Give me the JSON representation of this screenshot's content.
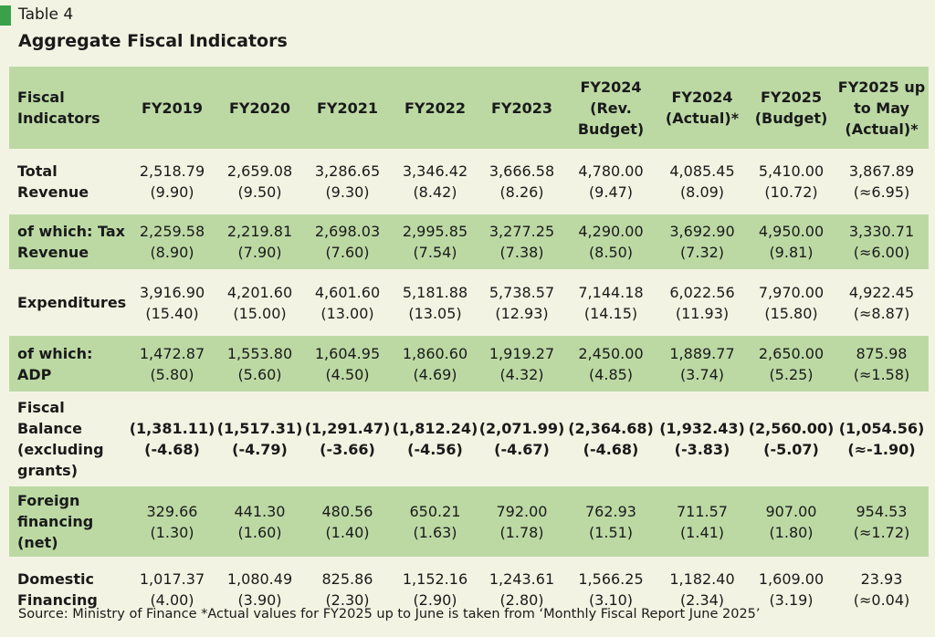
{
  "table_label": "Table 4",
  "title": "Aggregate Fiscal Indicators",
  "header": [
    "Fiscal Indicators",
    "FY2019",
    "FY2020",
    "FY2021",
    "FY2022",
    "FY2023",
    "FY2024 (Rev. Budget)",
    "FY2024 (Actual)*",
    "FY2025 (Budget)",
    "FY2025 up to May (Actual)*"
  ],
  "rows": [
    {
      "label": "Total Revenue",
      "values": [
        [
          "2,518.79",
          "(9.90)"
        ],
        [
          "2,659.08",
          "(9.50)"
        ],
        [
          "3,286.65",
          "(9.30)"
        ],
        [
          "3,346.42",
          "(8.42)"
        ],
        [
          "3,666.58",
          "(8.26)"
        ],
        [
          "4,780.00",
          "(9.47)"
        ],
        [
          "4,085.45",
          "(8.09)"
        ],
        [
          "5,410.00",
          "(10.72)"
        ],
        [
          "3,867.89",
          "(≈6.95)"
        ]
      ]
    },
    {
      "label": "of which: Tax Revenue",
      "values": [
        [
          "2,259.58",
          "(8.90)"
        ],
        [
          "2,219.81",
          "(7.90)"
        ],
        [
          "2,698.03",
          "(7.60)"
        ],
        [
          "2,995.85",
          "(7.54)"
        ],
        [
          "3,277.25",
          "(7.38)"
        ],
        [
          "4,290.00",
          "(8.50)"
        ],
        [
          "3,692.90",
          "(7.32)"
        ],
        [
          "4,950.00",
          "(9.81)"
        ],
        [
          "3,330.71",
          "(≈6.00)"
        ]
      ]
    },
    {
      "label": "Expenditures",
      "values": [
        [
          "3,916.90",
          "(15.40)"
        ],
        [
          "4,201.60",
          "(15.00)"
        ],
        [
          "4,601.60",
          "(13.00)"
        ],
        [
          "5,181.88",
          "(13.05)"
        ],
        [
          "5,738.57",
          "(12.93)"
        ],
        [
          "7,144.18",
          "(14.15)"
        ],
        [
          "6,022.56",
          "(11.93)"
        ],
        [
          "7,970.00",
          "(15.80)"
        ],
        [
          "4,922.45",
          "(≈8.87)"
        ]
      ]
    },
    {
      "label": "of which: ADP",
      "values": [
        [
          "1,472.87",
          "(5.80)"
        ],
        [
          "1,553.80",
          "(5.60)"
        ],
        [
          "1,604.95",
          "(4.50)"
        ],
        [
          "1,860.60",
          "(4.69)"
        ],
        [
          "1,919.27",
          "(4.32)"
        ],
        [
          "2,450.00",
          "(4.85)"
        ],
        [
          "1,889.77",
          "(3.74)"
        ],
        [
          "2,650.00",
          "(5.25)"
        ],
        [
          "875.98",
          "(≈1.58)"
        ]
      ]
    },
    {
      "label": "Fiscal Balance (excluding grants)",
      "values": [
        [
          "(1,381.11)",
          "(-4.68)"
        ],
        [
          "(1,517.31)",
          "(-4.79)"
        ],
        [
          "(1,291.47)",
          "(-3.66)"
        ],
        [
          "(1,812.24)",
          "(-4.56)"
        ],
        [
          "(2,071.99)",
          "(-4.67)"
        ],
        [
          "(2,364.68)",
          "(-4.68)"
        ],
        [
          "(1,932.43)",
          "(-3.83)"
        ],
        [
          "(2,560.00)",
          "(-5.07)"
        ],
        [
          "(1,054.56)",
          "(≈-1.90)"
        ]
      ]
    },
    {
      "label": "Foreign financing (net)",
      "values": [
        [
          "329.66",
          "(1.30)"
        ],
        [
          "441.30",
          "(1.60)"
        ],
        [
          "480.56",
          "(1.40)"
        ],
        [
          "650.21",
          "(1.63)"
        ],
        [
          "792.00",
          "(1.78)"
        ],
        [
          "762.93",
          "(1.51)"
        ],
        [
          "711.57",
          "(1.41)"
        ],
        [
          "907.00",
          "(1.80)"
        ],
        [
          "954.53",
          "(≈1.72)"
        ]
      ]
    },
    {
      "label": "Domestic Financing",
      "values": [
        [
          "1,017.37",
          "(4.00)"
        ],
        [
          "1,080.49",
          "(3.90)"
        ],
        [
          "825.86",
          "(2.30)"
        ],
        [
          "1,152.16",
          "(2.90)"
        ],
        [
          "1,243.61",
          "(2.80)"
        ],
        [
          "1,566.25",
          "(3.10)"
        ],
        [
          "1,182.40",
          "(2.34)"
        ],
        [
          "1,609.00",
          "(3.19)"
        ],
        [
          "23.93",
          "(≈0.04)"
        ]
      ]
    }
  ],
  "source": "Source: Ministry of Finance *Actual values for FY2025 up to June is taken from ‘Monthly Fiscal Report June 2025’",
  "colors": {
    "background": "#f3f3e3",
    "shaded_row": "#bcd9a4",
    "accent_marker": "#3aa14a"
  }
}
